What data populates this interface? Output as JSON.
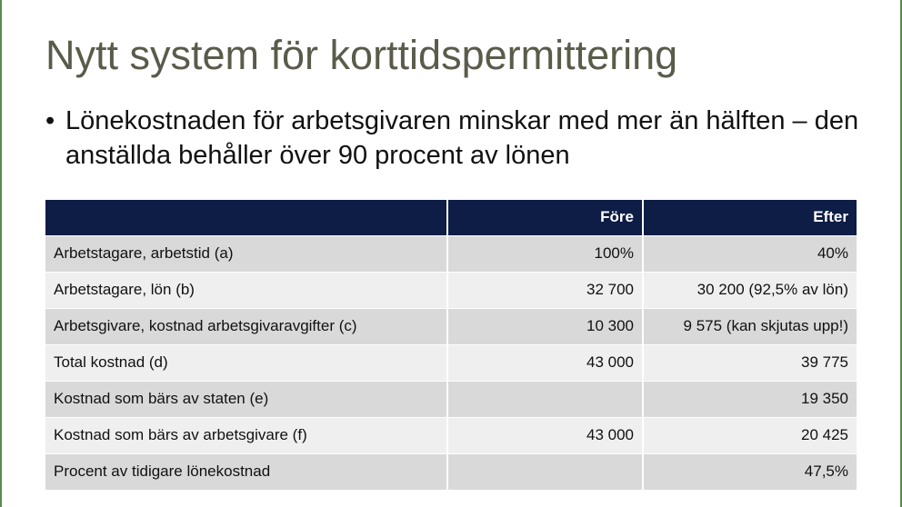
{
  "title": "Nytt system för korttidspermittering",
  "bullet": {
    "mark": "•",
    "text": "Lönekostnaden för arbetsgivaren minskar med mer än hälften – den anställda behåller över 90 procent av lönen"
  },
  "table": {
    "headers": [
      "",
      "Före",
      "Efter"
    ],
    "rows": [
      {
        "label": "Arbetstagare, arbetstid (a)",
        "before": "100%",
        "after": "40%"
      },
      {
        "label": "Arbetstagare, lön (b)",
        "before": "32 700",
        "after": "30 200 (92,5% av lön)"
      },
      {
        "label": "Arbetsgivare, kostnad arbetsgivaravgifter (c)",
        "before": "10 300",
        "after": "9 575 (kan skjutas upp!)"
      },
      {
        "label": "Total kostnad (d)",
        "before": "43 000",
        "after": "39 775"
      },
      {
        "label": "Kostnad som bärs av staten (e)",
        "before": "",
        "after": "19 350"
      },
      {
        "label": "Kostnad som bärs av arbetsgivare (f)",
        "before": "43 000",
        "after": "20 425"
      },
      {
        "label": "Procent av tidigare lönekostnad",
        "before": "",
        "after": "47,5%"
      }
    ]
  },
  "colors": {
    "title": "#5b5b4b",
    "header_bg": "#0d1d45",
    "row_odd": "#d9d9d9",
    "row_even": "#efefef",
    "edge_accent": "#5a8a4a"
  }
}
